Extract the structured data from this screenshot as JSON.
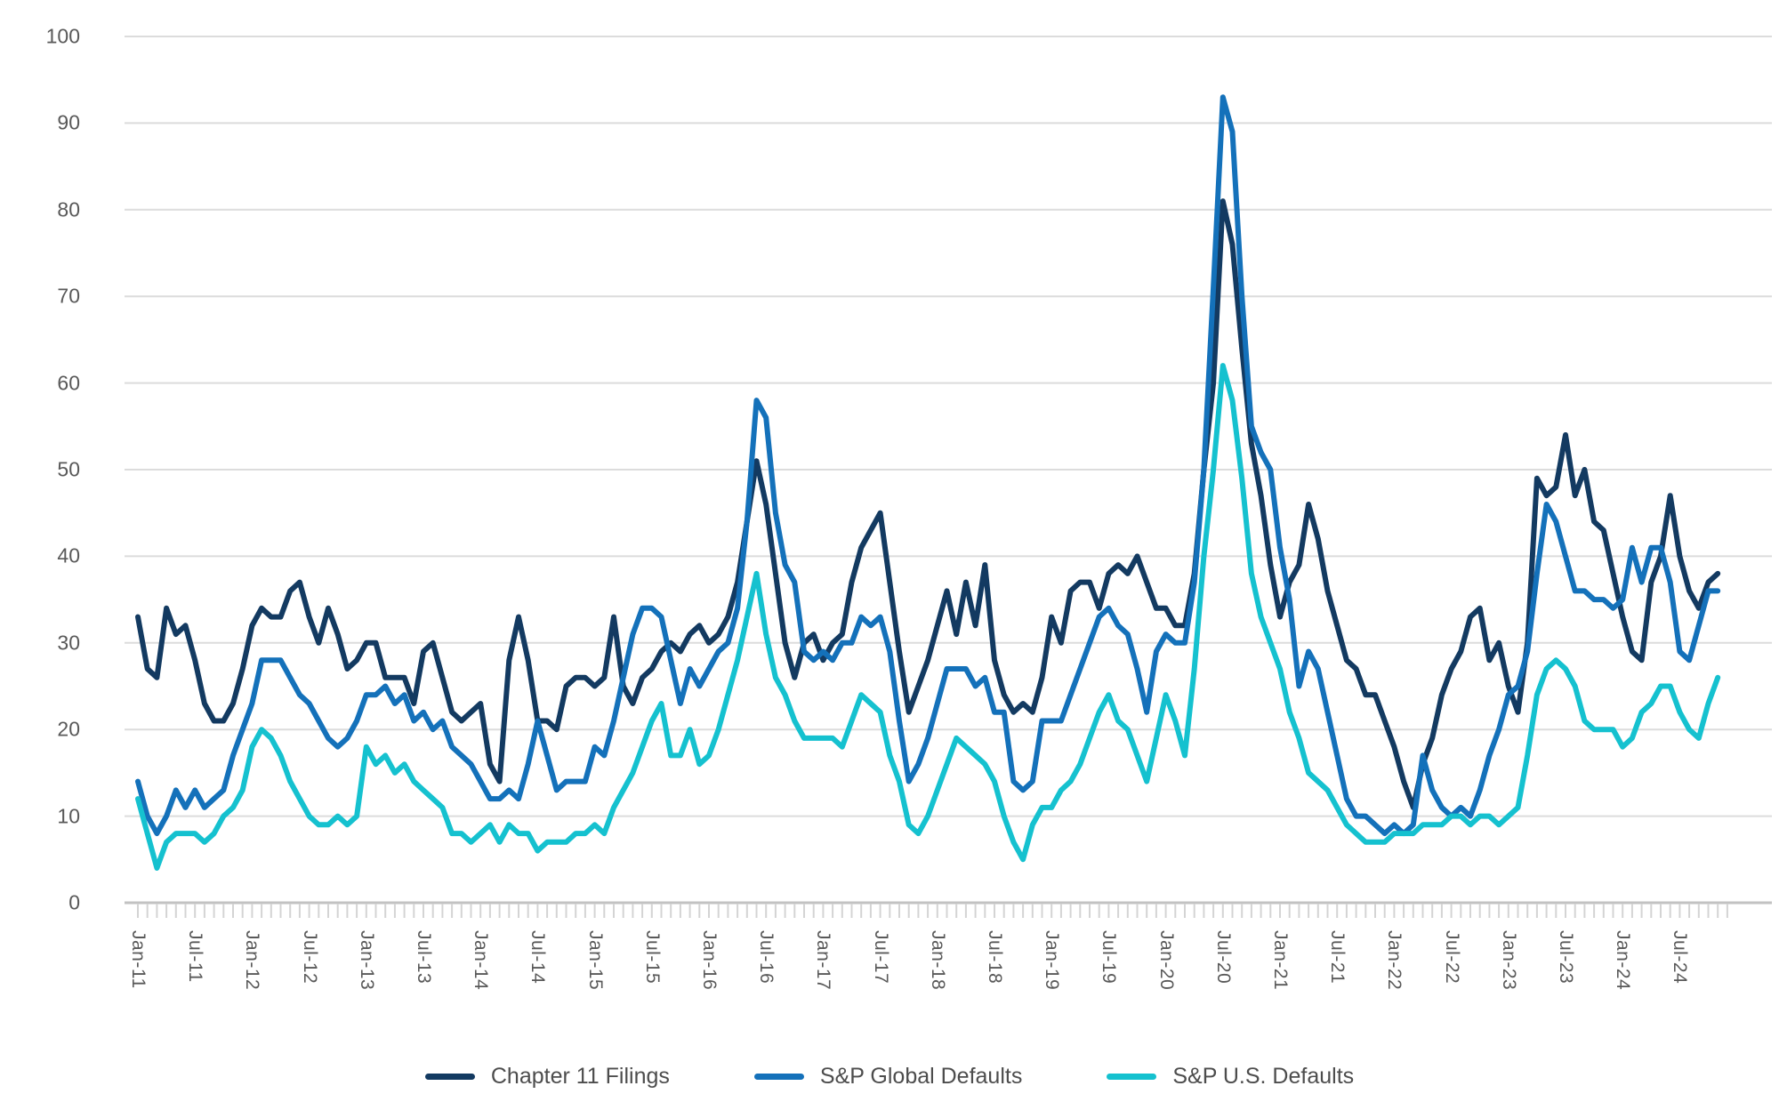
{
  "chart_data": {
    "type": "line",
    "title": "",
    "grid": "horizontal-only",
    "legend_position": "bottom-center",
    "y_axis": {
      "min": 0,
      "max": 100,
      "tick_step": 10,
      "tick_labels": [
        "0",
        "10",
        "20",
        "30",
        "40",
        "50",
        "60",
        "70",
        "80",
        "90",
        "100"
      ]
    },
    "x_axis": {
      "frequency": "monthly",
      "start": "Jan-11",
      "end": "Nov-24",
      "n_points": 167,
      "minor_tick_every_months": 1,
      "label_every_months": 6,
      "tick_labels": [
        "Jan-11",
        "Jul-11",
        "Jan-12",
        "Jul-12",
        "Jan-13",
        "Jul-13",
        "Jan-14",
        "Jul-14",
        "Jan-15",
        "Jul-15",
        "Jan-16",
        "Jul-16",
        "Jan-17",
        "Jul-17",
        "Jan-18",
        "Jul-18",
        "Jan-19",
        "Jul-19",
        "Jan-20",
        "Jul-20",
        "Jan-21",
        "Jul-21",
        "Jan-22",
        "Jul-22",
        "Jan-23",
        "Jul-23",
        "Jan-24",
        "Jul-24"
      ]
    },
    "series": [
      {
        "name": "Chapter 11 Filings",
        "color": "#133A61",
        "values": [
          33,
          27,
          26,
          34,
          31,
          32,
          28,
          23,
          21,
          21,
          23,
          27,
          32,
          34,
          33,
          33,
          36,
          37,
          33,
          30,
          34,
          31,
          27,
          28,
          30,
          30,
          26,
          26,
          26,
          23,
          29,
          30,
          26,
          22,
          21,
          22,
          23,
          16,
          14,
          28,
          33,
          28,
          21,
          21,
          20,
          25,
          26,
          26,
          25,
          26,
          33,
          25,
          23,
          26,
          27,
          29,
          30,
          29,
          31,
          32,
          30,
          31,
          33,
          37,
          44,
          51,
          46,
          38,
          30,
          26,
          30,
          31,
          28,
          30,
          31,
          37,
          41,
          43,
          45,
          37,
          29,
          22,
          25,
          28,
          32,
          36,
          31,
          37,
          32,
          39,
          28,
          24,
          22,
          23,
          22,
          26,
          33,
          30,
          36,
          37,
          37,
          34,
          38,
          39,
          38,
          40,
          37,
          34,
          34,
          32,
          32,
          38,
          50,
          60,
          81,
          76,
          64,
          53,
          47,
          39,
          33,
          37,
          39,
          46,
          42,
          36,
          32,
          28,
          27,
          24,
          24,
          21,
          18,
          14,
          11,
          16,
          19,
          24,
          27,
          29,
          33,
          34,
          28,
          30,
          25,
          22,
          30,
          49,
          47,
          48,
          54,
          47,
          50,
          44,
          43,
          38,
          33,
          29,
          28,
          37,
          40,
          47,
          40,
          36,
          34,
          37,
          38
        ]
      },
      {
        "name": "S&P Global Defaults",
        "color": "#1471BA",
        "values": [
          14,
          10,
          8,
          10,
          13,
          11,
          13,
          11,
          12,
          13,
          17,
          20,
          23,
          28,
          28,
          28,
          26,
          24,
          23,
          21,
          19,
          18,
          19,
          21,
          24,
          24,
          25,
          23,
          24,
          21,
          22,
          20,
          21,
          18,
          17,
          16,
          14,
          12,
          12,
          13,
          12,
          16,
          21,
          17,
          13,
          14,
          14,
          14,
          18,
          17,
          21,
          26,
          31,
          34,
          34,
          33,
          28,
          23,
          27,
          25,
          27,
          29,
          30,
          34,
          44,
          58,
          56,
          45,
          39,
          37,
          29,
          28,
          29,
          28,
          30,
          30,
          33,
          32,
          33,
          29,
          21,
          14,
          16,
          19,
          23,
          27,
          27,
          27,
          25,
          26,
          22,
          22,
          14,
          13,
          14,
          21,
          21,
          21,
          24,
          27,
          30,
          33,
          34,
          32,
          31,
          27,
          22,
          29,
          31,
          30,
          30,
          37,
          50,
          71,
          93,
          89,
          70,
          55,
          52,
          50,
          41,
          35,
          25,
          29,
          27,
          22,
          17,
          12,
          10,
          10,
          9,
          8,
          9,
          8,
          9,
          17,
          13,
          11,
          10,
          11,
          10,
          13,
          17,
          20,
          24,
          25,
          29,
          38,
          46,
          44,
          40,
          36,
          36,
          35,
          35,
          34,
          35,
          41,
          37,
          41,
          41,
          37,
          29,
          28,
          32,
          36,
          36
        ]
      },
      {
        "name": "S&P U.S. Defaults",
        "color": "#15C1CF",
        "values": [
          12,
          8,
          4,
          7,
          8,
          8,
          8,
          7,
          8,
          10,
          11,
          13,
          18,
          20,
          19,
          17,
          14,
          12,
          10,
          9,
          9,
          10,
          9,
          10,
          18,
          16,
          17,
          15,
          16,
          14,
          13,
          12,
          11,
          8,
          8,
          7,
          8,
          9,
          7,
          9,
          8,
          8,
          6,
          7,
          7,
          7,
          8,
          8,
          9,
          8,
          11,
          13,
          15,
          18,
          21,
          23,
          17,
          17,
          20,
          16,
          17,
          20,
          24,
          28,
          33,
          38,
          31,
          26,
          24,
          21,
          19,
          19,
          19,
          19,
          18,
          21,
          24,
          23,
          22,
          17,
          14,
          9,
          8,
          10,
          13,
          16,
          19,
          18,
          17,
          16,
          14,
          10,
          7,
          5,
          9,
          11,
          11,
          13,
          14,
          16,
          19,
          22,
          24,
          21,
          20,
          17,
          14,
          19,
          24,
          21,
          17,
          27,
          40,
          50,
          62,
          58,
          49,
          38,
          33,
          30,
          27,
          22,
          19,
          15,
          14,
          13,
          11,
          9,
          8,
          7,
          7,
          7,
          8,
          8,
          8,
          9,
          9,
          9,
          10,
          10,
          9,
          10,
          10,
          9,
          10,
          11,
          17,
          24,
          27,
          28,
          27,
          25,
          21,
          20,
          20,
          20,
          18,
          19,
          22,
          23,
          25,
          25,
          22,
          20,
          19,
          23,
          26
        ]
      }
    ],
    "style": {
      "line_width": 6,
      "gridline_color": "#dcdcdc",
      "axis_line_color": "#c2c2c2",
      "tick_color": "#d4d4d4",
      "label_color": "#595959",
      "background": "#ffffff"
    }
  },
  "legend": {
    "item1": "Chapter 11 Filings",
    "item2": "S&P Global Defaults",
    "item3": "S&P U.S. Defaults"
  }
}
